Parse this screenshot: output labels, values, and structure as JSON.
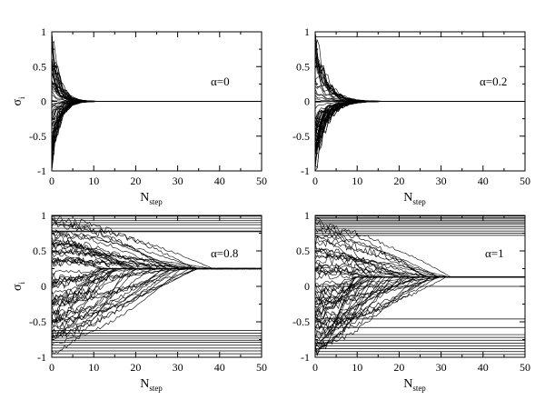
{
  "chart_data": [
    {
      "type": "line",
      "panel": "top-left",
      "annotation": "α=0",
      "xlabel": "N",
      "xlabel_sub": "step",
      "ylabel": "σ",
      "ylabel_sub": "i",
      "xlim": [
        0,
        50
      ],
      "ylim": [
        -1,
        1
      ],
      "xticks": [
        0,
        10,
        20,
        30,
        40,
        50
      ],
      "yticks": [
        -1,
        -0.5,
        0,
        0.5,
        1
      ],
      "grid": false,
      "convergence_value": 0.0,
      "convergence_step": 8,
      "frozen_levels": [],
      "series_count": 60
    },
    {
      "type": "line",
      "panel": "top-right",
      "annotation": "α=0.2",
      "xlabel": "N",
      "xlabel_sub": "step",
      "ylabel": "",
      "ylabel_sub": "",
      "xlim": [
        0,
        50
      ],
      "ylim": [
        -1,
        1
      ],
      "xticks": [
        0,
        10,
        20,
        30,
        40,
        50
      ],
      "yticks": [
        -1,
        -0.5,
        0,
        0.5,
        1
      ],
      "grid": false,
      "convergence_value": 0.0,
      "convergence_step": 12,
      "frozen_levels": [
        0.93
      ],
      "series_count": 60
    },
    {
      "type": "line",
      "panel": "bottom-left",
      "annotation": "α=0.8",
      "xlabel": "N",
      "xlabel_sub": "step",
      "ylabel": "σ",
      "ylabel_sub": "i",
      "xlim": [
        0,
        50
      ],
      "ylim": [
        -1,
        1
      ],
      "xticks": [
        0,
        10,
        20,
        30,
        40,
        50
      ],
      "yticks": [
        -1,
        -0.5,
        0,
        0.5,
        1
      ],
      "grid": false,
      "convergence_value": 0.25,
      "convergence_step": 40,
      "frozen_levels": [
        0.99,
        0.96,
        0.93,
        0.9,
        0.87,
        0.82,
        0.78,
        0.77,
        -0.62,
        -0.66,
        -0.7,
        -0.73,
        -0.76,
        -0.79,
        -0.83,
        -0.87,
        -0.91,
        -0.95
      ],
      "series_count": 60
    },
    {
      "type": "line",
      "panel": "bottom-right",
      "annotation": "α=1",
      "xlabel": "N",
      "xlabel_sub": "step",
      "ylabel": "",
      "ylabel_sub": "",
      "xlim": [
        0,
        50
      ],
      "ylim": [
        -1,
        1
      ],
      "xticks": [
        0,
        10,
        20,
        30,
        40,
        50
      ],
      "yticks": [
        -1,
        -0.5,
        0,
        0.5,
        1
      ],
      "grid": false,
      "convergence_value": 0.13,
      "convergence_step": 33,
      "frozen_levels": [
        0.99,
        0.97,
        0.95,
        0.93,
        0.91,
        0.89,
        0.87,
        0.84,
        0.81,
        0.78,
        0.75,
        0.72,
        0.0,
        -0.46,
        -0.58,
        -0.68,
        -0.72,
        -0.76,
        -0.8,
        -0.84,
        -0.88,
        -0.92,
        -0.96
      ],
      "series_count": 60
    }
  ]
}
